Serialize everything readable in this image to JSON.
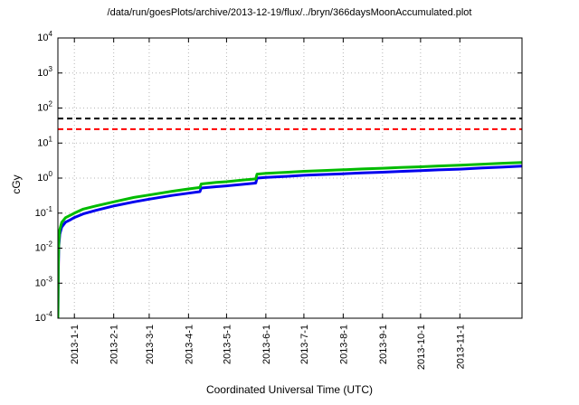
{
  "chart_data": {
    "type": "line",
    "title": "/data/run/goesPlots/archive/2013-12-19/flux/../bryn/366daysMoonAccumulated.plot",
    "xlabel": "Coordinated Universal Time (UTC)",
    "ylabel": "cGy",
    "x_axis": {
      "range_days": [
        0,
        366
      ],
      "ticks": [
        {
          "day": 13,
          "label": "2013-1-1"
        },
        {
          "day": 44,
          "label": "2013-2-1"
        },
        {
          "day": 72,
          "label": "2013-3-1"
        },
        {
          "day": 103,
          "label": "2013-4-1"
        },
        {
          "day": 133,
          "label": "2013-5-1"
        },
        {
          "day": 164,
          "label": "2013-6-1"
        },
        {
          "day": 194,
          "label": "2013-7-1"
        },
        {
          "day": 225,
          "label": "2013-8-1"
        },
        {
          "day": 256,
          "label": "2013-9-1"
        },
        {
          "day": 286,
          "label": "2013-10-1"
        },
        {
          "day": 317,
          "label": "2013-11-1"
        }
      ]
    },
    "y_axis": {
      "scale": "log10",
      "exponent_range": [
        -4,
        4
      ],
      "tick_exponents": [
        -4,
        -3,
        -2,
        -1,
        0,
        1,
        2,
        3,
        4
      ]
    },
    "grid": {
      "on": true,
      "color": "#b5b5b5"
    },
    "threshold_lines": [
      {
        "name": "upper-limit",
        "value": 50,
        "color": "#000000",
        "style": "dashed"
      },
      {
        "name": "lower-limit",
        "value": 25,
        "color": "#ff0000",
        "style": "dashed"
      }
    ],
    "series": [
      {
        "name": "accumulated-dose-blue",
        "color": "#0000ee",
        "points": [
          [
            0,
            0.0001
          ],
          [
            0.3,
            0.002
          ],
          [
            0.7,
            0.012
          ],
          [
            1.5,
            0.025
          ],
          [
            3,
            0.04
          ],
          [
            6,
            0.055
          ],
          [
            10,
            0.065
          ],
          [
            13,
            0.075
          ],
          [
            20,
            0.095
          ],
          [
            30,
            0.12
          ],
          [
            44,
            0.16
          ],
          [
            60,
            0.21
          ],
          [
            72,
            0.25
          ],
          [
            90,
            0.32
          ],
          [
            103,
            0.37
          ],
          [
            112,
            0.41
          ],
          [
            113,
            0.52
          ],
          [
            125,
            0.57
          ],
          [
            133,
            0.6
          ],
          [
            145,
            0.66
          ],
          [
            156,
            0.72
          ],
          [
            157,
            1.0
          ],
          [
            164,
            1.05
          ],
          [
            180,
            1.12
          ],
          [
            194,
            1.2
          ],
          [
            210,
            1.27
          ],
          [
            225,
            1.33
          ],
          [
            240,
            1.4
          ],
          [
            256,
            1.47
          ],
          [
            270,
            1.55
          ],
          [
            286,
            1.63
          ],
          [
            300,
            1.72
          ],
          [
            317,
            1.8
          ],
          [
            335,
            1.95
          ],
          [
            350,
            2.05
          ],
          [
            366,
            2.2
          ]
        ]
      },
      {
        "name": "accumulated-dose-green",
        "color": "#00bb00",
        "points": [
          [
            0,
            0.0001
          ],
          [
            0.3,
            0.003
          ],
          [
            0.7,
            0.016
          ],
          [
            1.5,
            0.034
          ],
          [
            3,
            0.054
          ],
          [
            6,
            0.074
          ],
          [
            10,
            0.088
          ],
          [
            13,
            0.1
          ],
          [
            20,
            0.13
          ],
          [
            30,
            0.16
          ],
          [
            44,
            0.21
          ],
          [
            60,
            0.28
          ],
          [
            72,
            0.33
          ],
          [
            90,
            0.42
          ],
          [
            103,
            0.49
          ],
          [
            112,
            0.54
          ],
          [
            113,
            0.68
          ],
          [
            125,
            0.75
          ],
          [
            133,
            0.79
          ],
          [
            145,
            0.87
          ],
          [
            156,
            0.95
          ],
          [
            157,
            1.3
          ],
          [
            164,
            1.37
          ],
          [
            180,
            1.46
          ],
          [
            194,
            1.56
          ],
          [
            210,
            1.65
          ],
          [
            225,
            1.73
          ],
          [
            240,
            1.82
          ],
          [
            256,
            1.91
          ],
          [
            270,
            2.0
          ],
          [
            286,
            2.1
          ],
          [
            300,
            2.22
          ],
          [
            317,
            2.33
          ],
          [
            335,
            2.5
          ],
          [
            350,
            2.65
          ],
          [
            366,
            2.8
          ]
        ]
      }
    ]
  }
}
